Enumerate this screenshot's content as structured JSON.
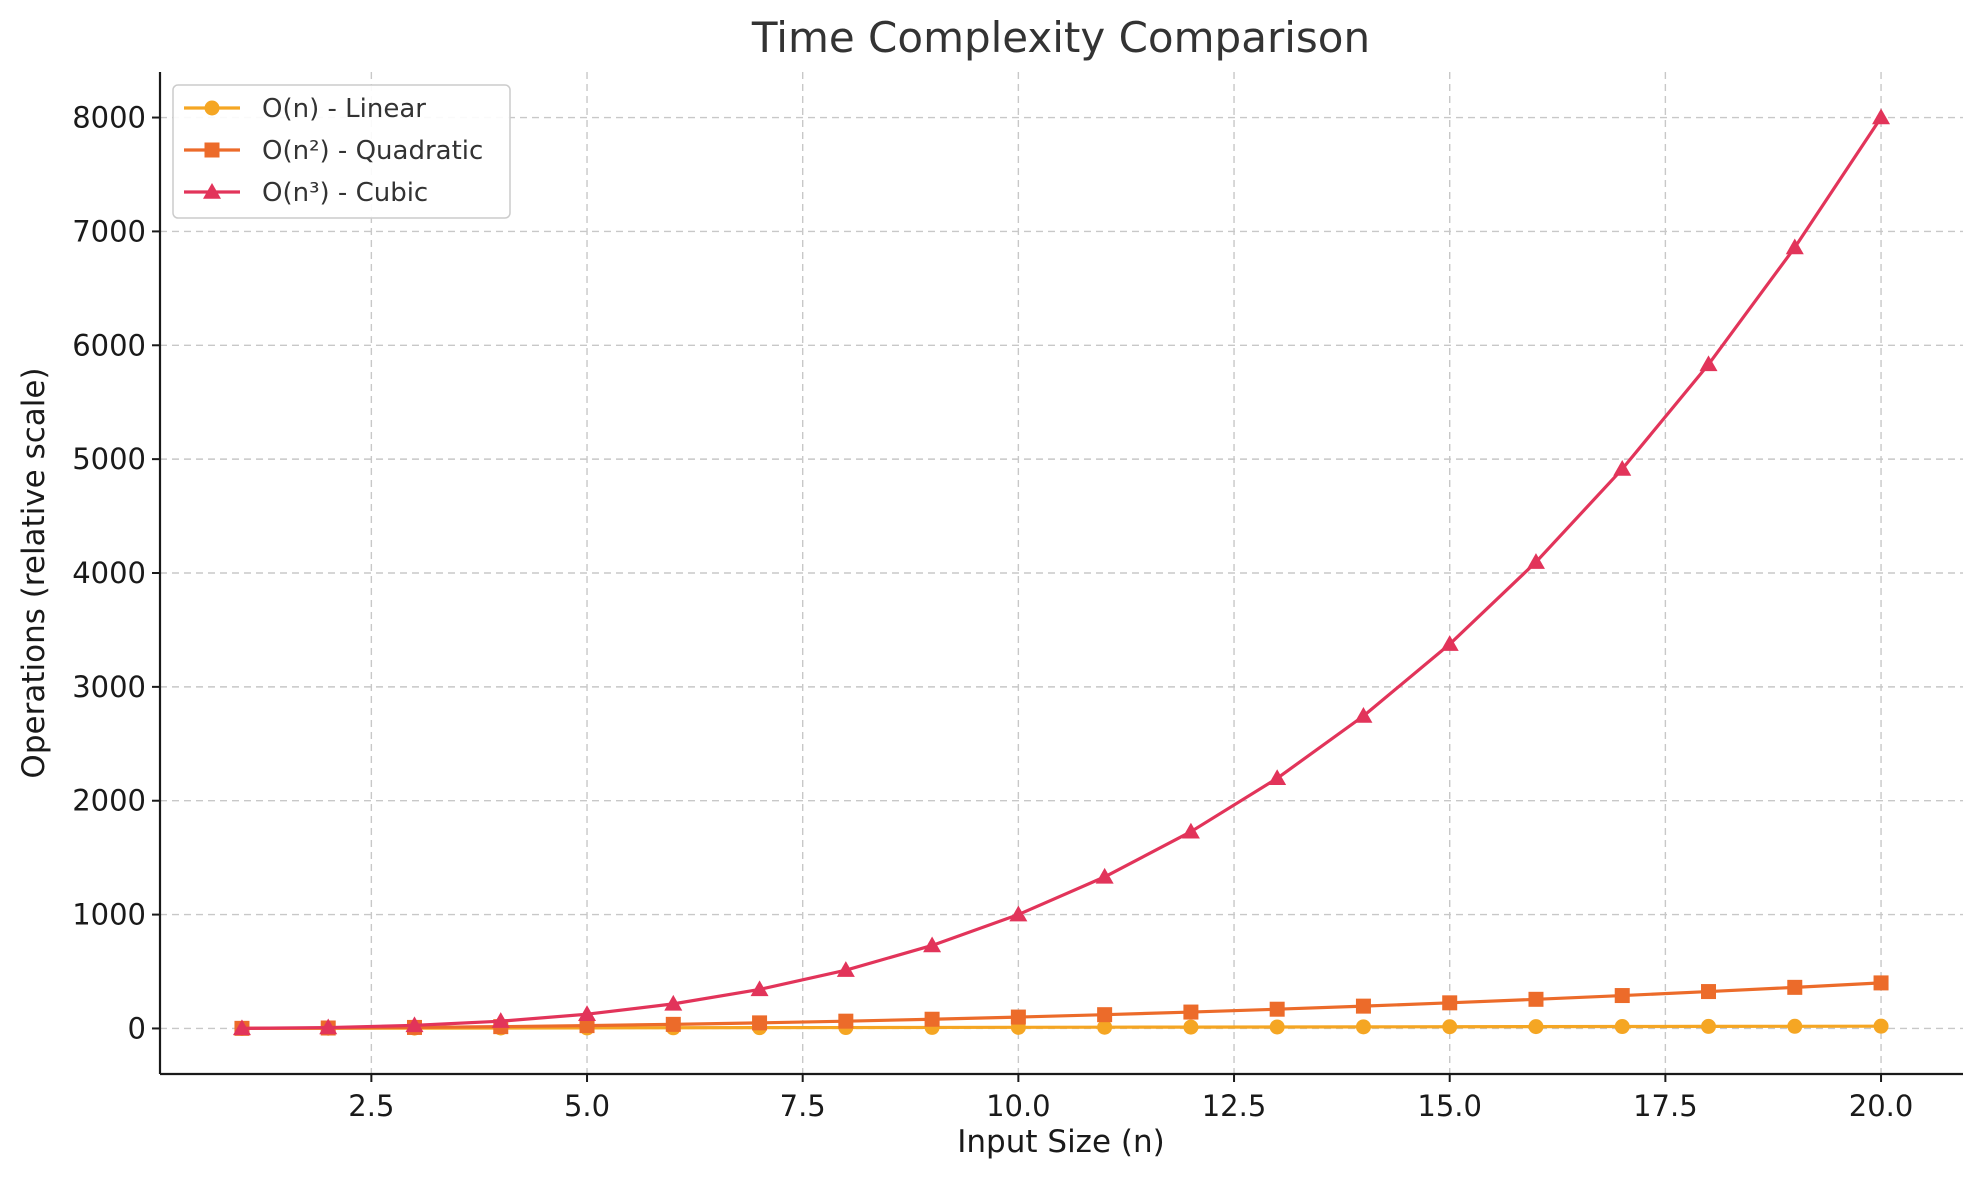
{
  "chart_data": {
    "type": "line",
    "title": "Time Complexity Comparison",
    "xlabel": "Input Size (n)",
    "ylabel": "Operations (relative scale)",
    "xlim": [
      0.05,
      20.95
    ],
    "ylim": [
      -400,
      8400
    ],
    "x_ticks": [
      2.5,
      5.0,
      7.5,
      10.0,
      12.5,
      15.0,
      17.5,
      20.0
    ],
    "x_tick_labels": [
      "2.5",
      "5.0",
      "7.5",
      "10.0",
      "12.5",
      "15.0",
      "17.5",
      "20.0"
    ],
    "y_ticks": [
      0,
      1000,
      2000,
      3000,
      4000,
      5000,
      6000,
      7000,
      8000
    ],
    "y_tick_labels": [
      "0",
      "1000",
      "2000",
      "3000",
      "4000",
      "5000",
      "6000",
      "7000",
      "8000"
    ],
    "grid": true,
    "legend_position": "top-left",
    "x": [
      1,
      2,
      3,
      4,
      5,
      6,
      7,
      8,
      9,
      10,
      11,
      12,
      13,
      14,
      15,
      16,
      17,
      18,
      19,
      20
    ],
    "series": [
      {
        "name": "O(n) - Linear",
        "color": "#f5a623",
        "marker": "circle",
        "values": [
          1,
          2,
          3,
          4,
          5,
          6,
          7,
          8,
          9,
          10,
          11,
          12,
          13,
          14,
          15,
          16,
          17,
          18,
          19,
          20
        ]
      },
      {
        "name": "O(n²) - Quadratic",
        "color": "#ec6b2a",
        "marker": "square",
        "values": [
          1,
          4,
          9,
          16,
          25,
          36,
          49,
          64,
          81,
          100,
          121,
          144,
          169,
          196,
          225,
          256,
          289,
          324,
          361,
          400
        ]
      },
      {
        "name": "O(n³) - Cubic",
        "color": "#e2345a",
        "marker": "triangle",
        "values": [
          1,
          8,
          27,
          64,
          125,
          216,
          343,
          512,
          729,
          1000,
          1331,
          1728,
          2197,
          2744,
          3375,
          4096,
          4913,
          5832,
          6859,
          8000
        ]
      }
    ]
  }
}
